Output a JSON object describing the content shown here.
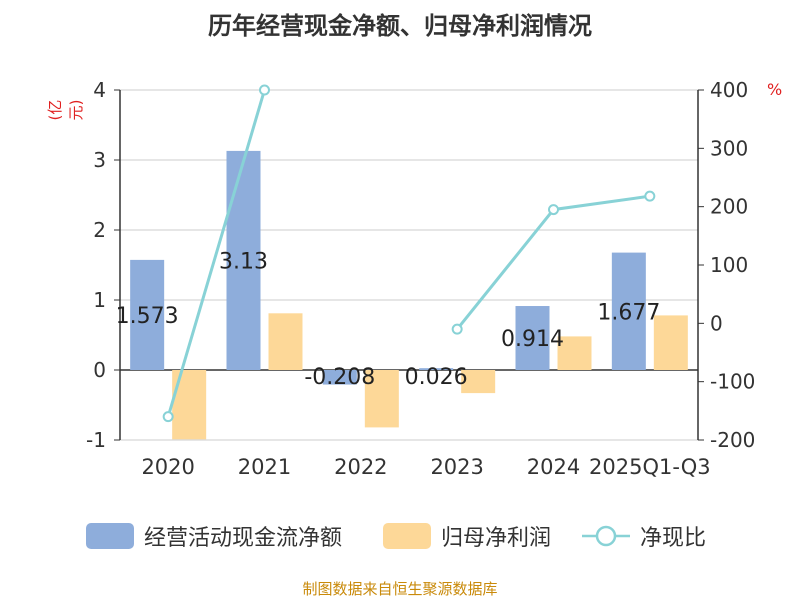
{
  "title": "历年经营现金净额、归母净利润情况",
  "source": "制图数据来自恒生聚源数据库",
  "chart_data": {
    "type": "bar",
    "categories": [
      "2020",
      "2021",
      "2022",
      "2023",
      "2024",
      "2025Q1-Q3"
    ],
    "y_left": {
      "label": "(亿元)",
      "ylim": [
        -1,
        4
      ],
      "ticks": [
        -1,
        0,
        1,
        2,
        3,
        4
      ]
    },
    "y_right": {
      "label": "%",
      "ylim": [
        -200,
        400
      ],
      "ticks": [
        -200,
        -100,
        0,
        100,
        200,
        300,
        400
      ]
    },
    "grid": true,
    "legend_position": "bottom",
    "series": [
      {
        "name": "经营活动现金流净额",
        "kind": "bar",
        "axis": "left",
        "color": "#8eaddb",
        "values": [
          1.573,
          3.13,
          -0.208,
          0.026,
          0.914,
          1.677
        ],
        "labels": [
          "1.573",
          "3.13",
          "-0.208",
          "0.026",
          "0.914",
          "1.677"
        ]
      },
      {
        "name": "归母净利润",
        "kind": "bar",
        "axis": "left",
        "color": "#fdd898",
        "values": [
          -0.99,
          0.81,
          -0.82,
          -0.33,
          0.48,
          0.78
        ]
      },
      {
        "name": "净现比",
        "kind": "line",
        "axis": "right",
        "color": "#88d2d6",
        "values": [
          -160,
          400,
          null,
          -10,
          195,
          218
        ]
      }
    ]
  }
}
